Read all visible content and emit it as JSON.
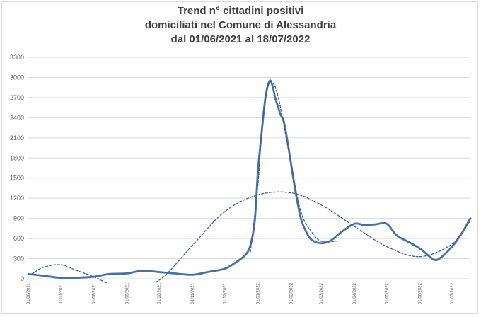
{
  "chart_data": {
    "type": "line",
    "title_lines": [
      "Trend n° cittadini positivi",
      "domiciliati nel Comune di Alessandria",
      "dal 01/06/2021 al 18/07/2022"
    ],
    "xlabel": "",
    "ylabel": "",
    "ylim": [
      0,
      3300
    ],
    "y_ticks": [
      0,
      300,
      600,
      900,
      1200,
      1500,
      1800,
      2100,
      2400,
      2700,
      3000,
      3300
    ],
    "x_tick_labels": [
      "01/06/2021",
      "01/07/2021",
      "01/08/2021",
      "01/09/2021",
      "01/10/2021",
      "01/11/2021",
      "01/12/2021",
      "01/01/2022",
      "01/02/2022",
      "01/03/2022",
      "01/04/2022",
      "01/05/2022",
      "01/06/2022",
      "01/07/2022"
    ],
    "grid": true,
    "legend": "none",
    "colors": {
      "actual": "#4a6fa5",
      "trend": "#3b5e97",
      "grid": "#d9d9d9"
    },
    "series": [
      {
        "style": "solid",
        "x": [
          "01/06/2021",
          "10/06/2021",
          "20/06/2021",
          "01/07/2021",
          "15/07/2021",
          "01/08/2021",
          "15/08/2021",
          "01/09/2021",
          "15/09/2021",
          "01/10/2021",
          "15/10/2021",
          "01/11/2021",
          "15/11/2021",
          "01/12/2021",
          "10/12/2021",
          "20/12/2021",
          "25/12/2021",
          "29/12/2021",
          "01/01/2022",
          "04/01/2022",
          "08/01/2022",
          "12/01/2022",
          "15/01/2022",
          "17/01/2022",
          "19/01/2022",
          "22/01/2022",
          "25/01/2022",
          "28/01/2022",
          "01/02/2022",
          "05/02/2022",
          "10/02/2022",
          "15/02/2022",
          "20/02/2022",
          "01/03/2022",
          "10/03/2022",
          "20/03/2022",
          "01/04/2022",
          "10/04/2022",
          "20/04/2022",
          "01/05/2022",
          "10/05/2022",
          "20/05/2022",
          "01/06/2022",
          "10/06/2022",
          "15/06/2022",
          "20/06/2022",
          "01/07/2022",
          "10/07/2022",
          "18/07/2022"
        ],
        "values": [
          70,
          55,
          35,
          15,
          15,
          30,
          70,
          80,
          120,
          100,
          80,
          60,
          100,
          150,
          230,
          350,
          500,
          850,
          1600,
          2100,
          2700,
          2950,
          2850,
          2700,
          2600,
          2450,
          2350,
          2100,
          1700,
          1300,
          900,
          700,
          580,
          530,
          570,
          700,
          820,
          800,
          810,
          820,
          650,
          560,
          450,
          330,
          280,
          310,
          480,
          680,
          900
        ]
      },
      {
        "style": "dashed",
        "x": [
          "01/06/2021",
          "05/06/2021",
          "15/06/2021",
          "01/07/2021",
          "15/07/2021",
          "01/08/2021",
          "01/09/2021",
          "01/10/2021",
          "01/11/2021",
          "01/12/2021",
          "01/01/2022",
          "01/02/2022",
          "01/03/2022",
          "01/04/2022",
          "01/05/2022",
          "01/06/2022",
          "01/07/2022",
          "18/07/2022"
        ],
        "values": [
          60,
          80,
          170,
          210,
          130,
          30,
          -170,
          -20,
          500,
          1000,
          1250,
          1280,
          1100,
          780,
          480,
          330,
          520,
          870
        ]
      },
      {
        "style": "dashed",
        "x": [
          "25/12/2021",
          "01/01/2022",
          "05/01/2022",
          "10/01/2022",
          "15/01/2022",
          "20/01/2022",
          "25/01/2022",
          "01/02/2022",
          "10/02/2022",
          "20/02/2022",
          "01/03/2022",
          "15/03/2022"
        ],
        "values": [
          400,
          1400,
          2300,
          2850,
          2920,
          2700,
          2300,
          1700,
          1000,
          700,
          560,
          560
        ]
      }
    ]
  }
}
